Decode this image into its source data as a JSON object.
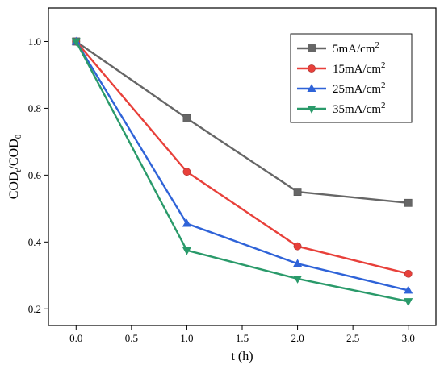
{
  "chart_data": {
    "type": "line",
    "x": [
      0.0,
      1.0,
      2.0,
      3.0
    ],
    "xlabel": "t (h)",
    "ylabel": "CODt/COD0",
    "ylabel_parts": {
      "main1": "COD",
      "sub1": "t",
      "main2": "/COD",
      "sub2": "0"
    },
    "xlim": [
      -0.25,
      3.25
    ],
    "ylim": [
      0.15,
      1.1
    ],
    "xticks": [
      0.0,
      0.5,
      1.0,
      1.5,
      2.0,
      2.5,
      3.0
    ],
    "xtick_labels": [
      "0.0",
      "0.5",
      "1.0",
      "1.5",
      "2.0",
      "2.5",
      "3.0"
    ],
    "yticks": [
      0.2,
      0.4,
      0.6,
      0.8,
      1.0
    ],
    "ytick_labels": [
      "0.2",
      "0.4",
      "0.6",
      "0.8",
      "1.0"
    ],
    "grid": false,
    "legend_position": "top-right",
    "series": [
      {
        "name": "5mA/cm2",
        "label_main": "5mA/cm",
        "label_sup": "2",
        "marker": "square",
        "color": "#666666",
        "values": [
          1.0,
          0.77,
          0.55,
          0.517
        ]
      },
      {
        "name": "15mA/cm2",
        "label_main": "15mA/cm",
        "label_sup": "2",
        "marker": "circle",
        "color": "#e8403a",
        "values": [
          1.0,
          0.61,
          0.387,
          0.305
        ]
      },
      {
        "name": "25mA/cm2",
        "label_main": "25mA/cm",
        "label_sup": "2",
        "marker": "triangle-up",
        "color": "#2f63d8",
        "values": [
          1.0,
          0.455,
          0.335,
          0.255
        ]
      },
      {
        "name": "35mA/cm2",
        "label_main": "35mA/cm",
        "label_sup": "2",
        "marker": "triangle-down",
        "color": "#2a9a6a",
        "values": [
          1.0,
          0.375,
          0.29,
          0.222
        ]
      }
    ]
  }
}
